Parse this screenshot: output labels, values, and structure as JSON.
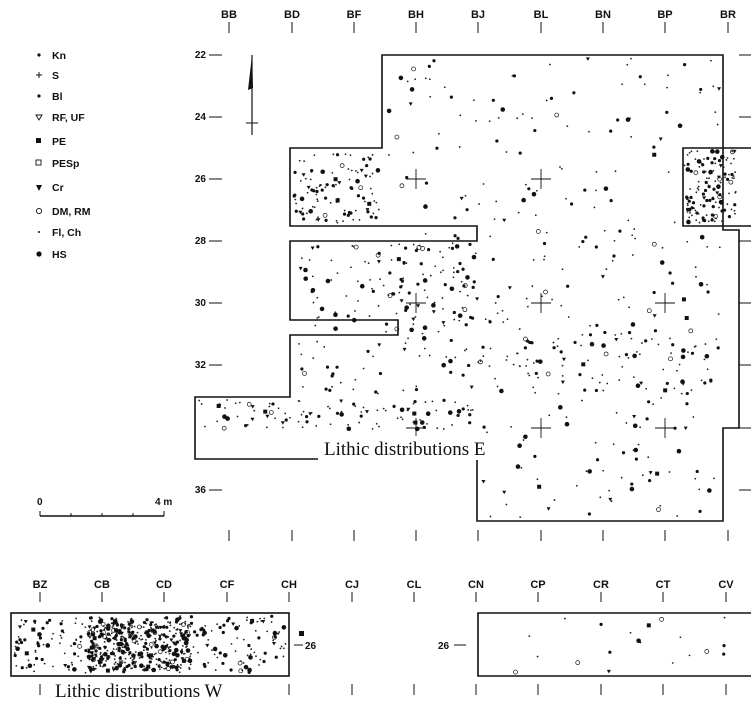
{
  "east": {
    "title": "Lithic distributions E",
    "column_labels": [
      "BB",
      "BD",
      "BF",
      "BH",
      "BJ",
      "BL",
      "BN",
      "BP",
      "BR"
    ],
    "row_labels": [
      "22",
      "24",
      "26",
      "28",
      "30",
      "32",
      "36"
    ]
  },
  "west": {
    "title": "Lithic distributions W",
    "column_labels": [
      "BZ",
      "CB",
      "CD",
      "CF",
      "CH",
      "CJ",
      "CL",
      "CN",
      "CP",
      "CR",
      "CT",
      "CV"
    ],
    "row_label_right": "26",
    "row_label_left": "26"
  },
  "legend": {
    "items": [
      {
        "label": "Kn",
        "symbol": "dot-small"
      },
      {
        "label": "S",
        "symbol": "plus-small"
      },
      {
        "label": "Bl",
        "symbol": "dot-small"
      },
      {
        "label": "RF, UF",
        "symbol": "triangle-down-open"
      },
      {
        "label": "PE",
        "symbol": "square-filled"
      },
      {
        "label": "PESp",
        "symbol": "square-open"
      },
      {
        "label": "Cr",
        "symbol": "triangle-down-filled"
      },
      {
        "label": "DM, RM",
        "symbol": "circle-open"
      },
      {
        "label": "Fl, Ch",
        "symbol": "dot-tiny"
      },
      {
        "label": "HS",
        "symbol": "dot-filled"
      }
    ]
  },
  "scale_bar": {
    "start": "0",
    "end": "4 m"
  }
}
